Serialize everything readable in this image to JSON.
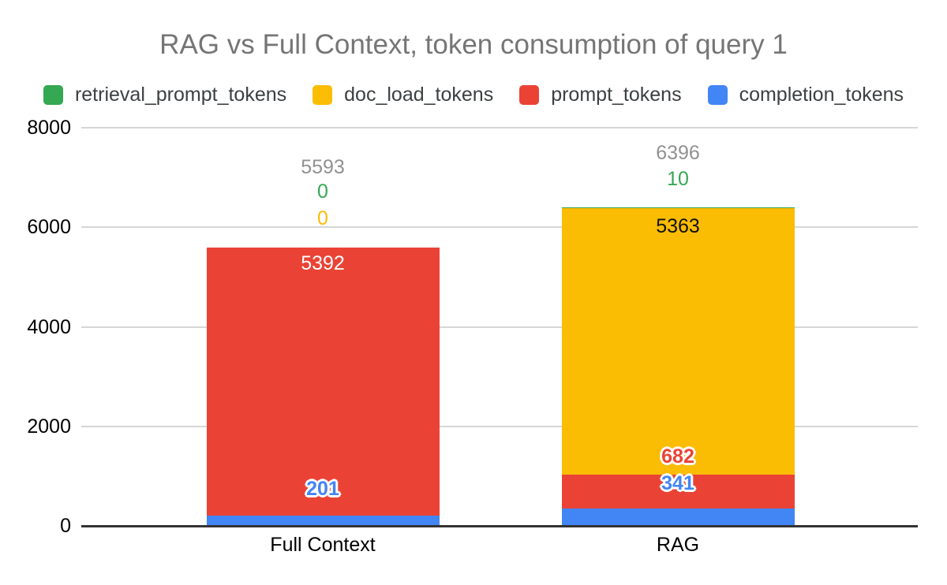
{
  "title": "RAG vs Full Context, token consumption of query 1",
  "chart_data": {
    "type": "bar",
    "stacked": true,
    "orientation": "vertical",
    "categories": [
      "Full Context",
      "RAG"
    ],
    "series": [
      {
        "name": "retrieval_prompt_tokens",
        "color": "#34A853",
        "values": [
          0,
          10
        ]
      },
      {
        "name": "doc_load_tokens",
        "color": "#FBBC04",
        "values": [
          0,
          5363
        ]
      },
      {
        "name": "prompt_tokens",
        "color": "#EA4335",
        "values": [
          5392,
          682
        ]
      },
      {
        "name": "completion_tokens",
        "color": "#4285F4",
        "values": [
          201,
          341
        ]
      }
    ],
    "stack_order_bottom_to_top": [
      "completion_tokens",
      "prompt_tokens",
      "doc_load_tokens",
      "retrieval_prompt_tokens"
    ],
    "totals": [
      5593,
      6396
    ],
    "xlabel": "",
    "ylabel": "",
    "yticks": [
      0,
      2000,
      4000,
      6000,
      8000
    ],
    "ylim": [
      0,
      8000
    ],
    "grid": true,
    "legend_position": "top",
    "colors": {
      "title_text": "#757575",
      "total_label_text": "#919191",
      "legend_text": "#3c4043",
      "axis_tick_text": "#000000",
      "gridline": "#d6d6d6",
      "axis_line": "#333333"
    }
  }
}
